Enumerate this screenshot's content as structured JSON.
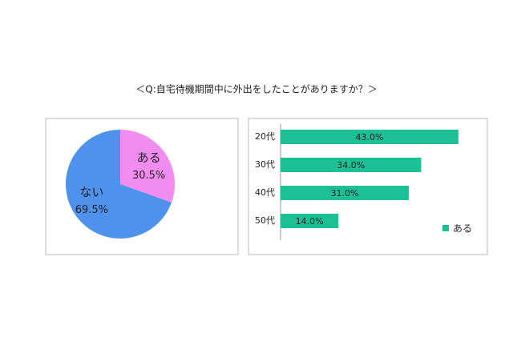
{
  "title": "＜Q:自宅待機期間中に外出をしたことがありますか？＞",
  "chart_data": [
    {
      "type": "pie",
      "categories": [
        "ある",
        "ない"
      ],
      "values": [
        30.5,
        69.5
      ],
      "value_labels": [
        "30.5%",
        "69.5%"
      ],
      "colors": [
        "#f28cf0",
        "#4f92ee"
      ]
    },
    {
      "type": "hbar",
      "categories": [
        "20代",
        "30代",
        "40代",
        "50代"
      ],
      "xlim": [
        0,
        50
      ],
      "series": [
        {
          "name": "ある",
          "color": "#1dbf95",
          "values": [
            43.0,
            34.0,
            31.0,
            14.0
          ],
          "value_labels": [
            "43.0%",
            "34.0%",
            "31.0%",
            "14.0%"
          ]
        }
      ],
      "legend": "bottom-right"
    }
  ]
}
